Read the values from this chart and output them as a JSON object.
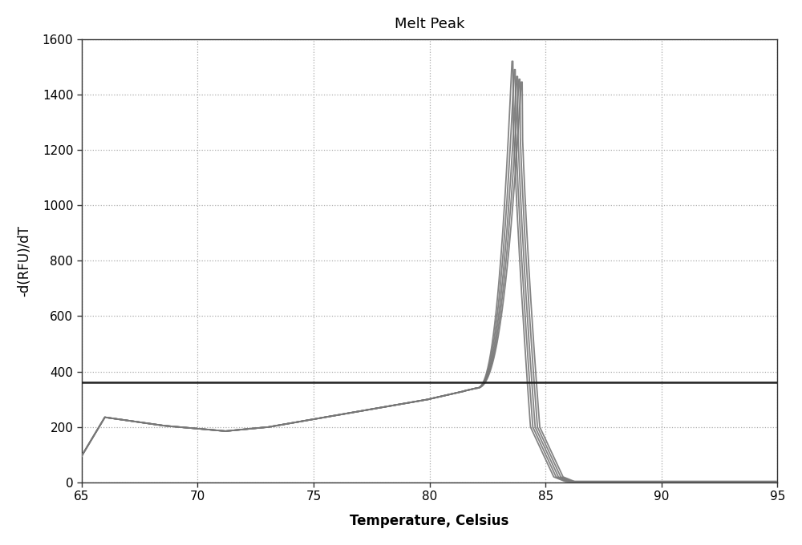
{
  "title": "Melt Peak",
  "xlabel": "Temperature, Celsius",
  "ylabel": "-d(RFU)/dT",
  "xlim": [
    65,
    95
  ],
  "ylim": [
    0,
    1600
  ],
  "xticks": [
    65,
    70,
    75,
    80,
    85,
    90,
    95
  ],
  "yticks": [
    0,
    200,
    400,
    600,
    800,
    1000,
    1200,
    1400,
    1600
  ],
  "hline_y": 360,
  "hline_color": "#222222",
  "curve_color": "#777777",
  "background_color": "#ffffff",
  "title_fontsize": 13,
  "label_fontsize": 12,
  "tick_fontsize": 11,
  "n_curves": 5,
  "peak_temps": [
    83.55,
    83.65,
    83.75,
    83.85,
    83.95
  ],
  "peak_heights": [
    1520,
    1490,
    1465,
    1455,
    1445
  ]
}
